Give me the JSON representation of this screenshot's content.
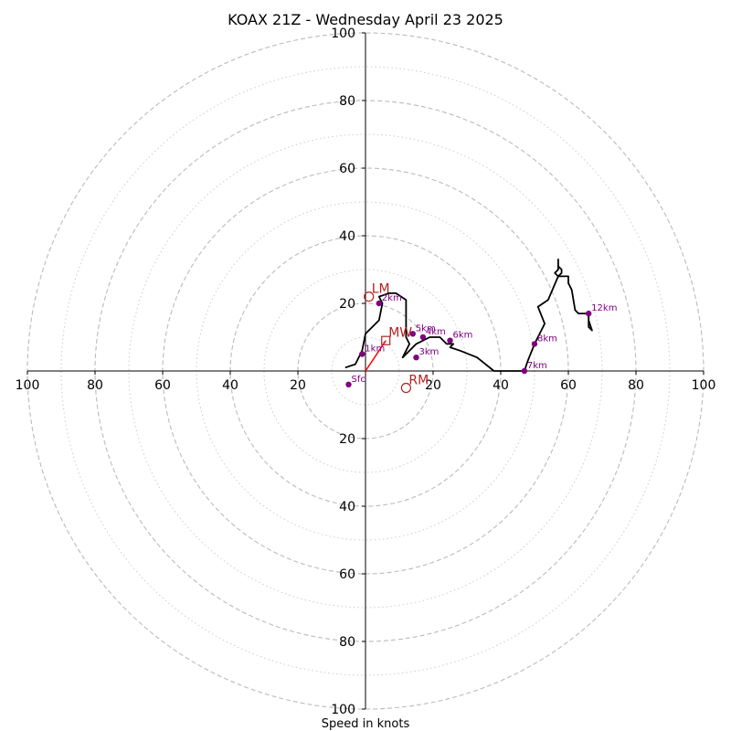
{
  "chart_data": {
    "type": "hodograph",
    "title": "KOAX 21Z - Wednesday April 23 2025",
    "xlabel": "Speed in knots",
    "xlim": [
      -100,
      100
    ],
    "ylim": [
      -100,
      100
    ],
    "grid": "concentric rings every 10 kt (dashed at 20 kt multiples, dotted in between)",
    "x_ticks": [
      "100",
      "80",
      "60",
      "40",
      "20",
      "20",
      "40",
      "60",
      "80",
      "100"
    ],
    "y_ticks": [
      "100",
      "80",
      "60",
      "40",
      "20",
      "20",
      "40",
      "60",
      "80",
      "100"
    ],
    "series": [
      {
        "type": "line",
        "color": "#000000",
        "points": [
          [
            -6,
            1
          ],
          [
            -3,
            2
          ],
          [
            -1,
            6
          ],
          [
            0,
            11
          ],
          [
            4,
            15
          ],
          [
            5,
            20
          ],
          [
            4,
            22
          ],
          [
            7,
            23
          ],
          [
            9,
            23
          ],
          [
            12,
            21
          ],
          [
            12,
            10
          ],
          [
            13,
            8
          ],
          [
            11,
            4
          ],
          [
            15,
            8
          ],
          [
            19,
            10
          ],
          [
            22,
            10
          ],
          [
            24,
            8
          ],
          [
            26,
            8
          ],
          [
            25,
            7
          ],
          [
            28,
            6
          ],
          [
            33,
            4
          ],
          [
            38,
            0
          ],
          [
            47,
            0
          ],
          [
            48,
            3
          ],
          [
            50,
            8
          ],
          [
            52,
            12
          ],
          [
            53,
            14
          ],
          [
            51,
            19
          ],
          [
            51,
            19
          ],
          [
            54,
            21
          ],
          [
            57,
            28
          ],
          [
            58,
            29
          ],
          [
            58,
            30
          ],
          [
            57,
            31
          ],
          [
            57,
            33
          ],
          [
            57,
            33
          ],
          [
            57,
            30
          ],
          [
            56,
            29
          ],
          [
            57,
            28
          ],
          [
            58,
            28
          ],
          [
            60,
            28
          ],
          [
            60,
            26
          ],
          [
            61,
            24
          ],
          [
            62,
            18
          ],
          [
            63,
            17
          ],
          [
            65,
            17
          ],
          [
            66,
            17
          ],
          [
            66,
            13
          ],
          [
            67,
            12
          ],
          [
            66,
            15
          ],
          [
            66,
            17
          ]
        ]
      }
    ],
    "height_markers": [
      {
        "label": "Sfc",
        "x": -5,
        "y": -4
      },
      {
        "label": "1km",
        "x": -1,
        "y": 5
      },
      {
        "label": "2km",
        "x": 4,
        "y": 20
      },
      {
        "label": "3km",
        "x": 15,
        "y": 4
      },
      {
        "label": "4km",
        "x": 17,
        "y": 10
      },
      {
        "label": "5km",
        "x": 14,
        "y": 11
      },
      {
        "label": "6km",
        "x": 25,
        "y": 9
      },
      {
        "label": "7km",
        "x": 47,
        "y": 0
      },
      {
        "label": "8km",
        "x": 50,
        "y": 8
      },
      {
        "label": "12km",
        "x": 66,
        "y": 17
      }
    ],
    "storm_motions": [
      {
        "label": "LM",
        "marker": "circle",
        "x": 1,
        "y": 22
      },
      {
        "label": "MW",
        "marker": "square",
        "x": 6,
        "y": 9
      },
      {
        "label": "RM",
        "marker": "circle",
        "x": 12,
        "y": -5
      }
    ],
    "mean_wind_vector": {
      "from": [
        0,
        0
      ],
      "to": [
        6,
        9
      ],
      "color": "#ff0000"
    },
    "colors": {
      "hodograph": "#000000",
      "markers": "#800080",
      "storm_motion": "#b22222"
    }
  }
}
